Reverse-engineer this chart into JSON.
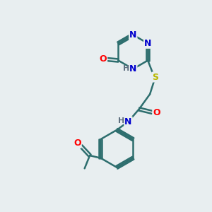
{
  "bg_color": "#e8eef0",
  "atom_colors": {
    "C": "#000000",
    "N": "#0000cd",
    "O": "#ff0000",
    "S": "#b8b800",
    "H": "#607080"
  },
  "bond_color": "#2d6e6e",
  "bond_width": 1.8,
  "font_size": 9,
  "fig_size": [
    3.0,
    3.0
  ],
  "dpi": 100
}
